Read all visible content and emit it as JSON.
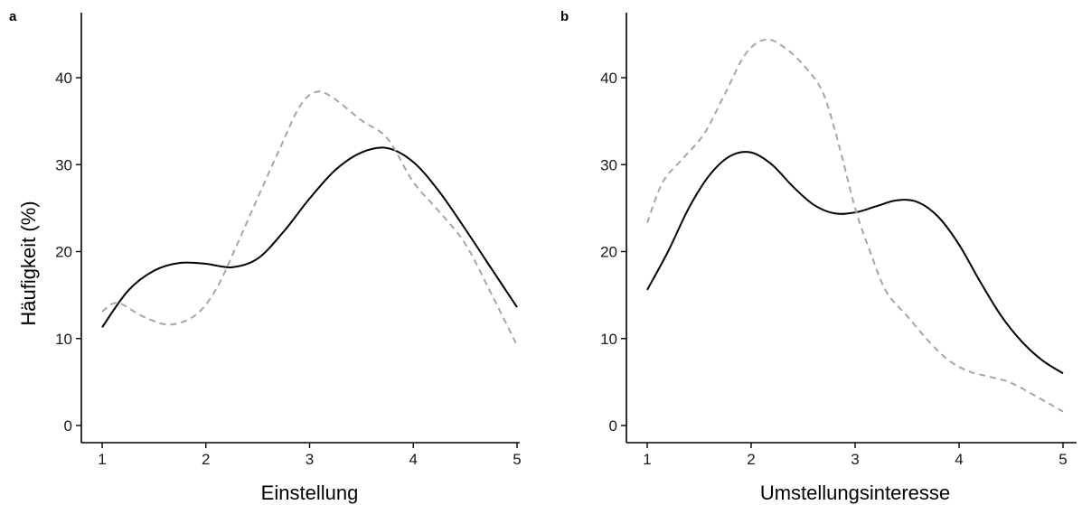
{
  "chart_data": [
    {
      "type": "line",
      "panel_label": "a",
      "xlabel": "Einstellung",
      "ylabel": "Häufigkeit (%)",
      "xlim": [
        1,
        5
      ],
      "ylim": [
        0,
        45
      ],
      "x_ticks": [
        1,
        2,
        3,
        4,
        5
      ],
      "y_ticks": [
        0,
        10,
        20,
        30,
        40
      ],
      "grid": false,
      "series": [
        {
          "style": "solid",
          "color": "#000000",
          "points": [
            [
              1.0,
              11.3
            ],
            [
              1.25,
              15.5
            ],
            [
              1.5,
              17.8
            ],
            [
              1.75,
              18.7
            ],
            [
              2.0,
              18.6
            ],
            [
              2.25,
              18.2
            ],
            [
              2.5,
              19.2
            ],
            [
              2.75,
              22.3
            ],
            [
              3.0,
              26.1
            ],
            [
              3.25,
              29.4
            ],
            [
              3.5,
              31.4
            ],
            [
              3.75,
              31.9
            ],
            [
              4.0,
              30.3
            ],
            [
              4.25,
              26.9
            ],
            [
              4.5,
              22.6
            ],
            [
              4.75,
              18.1
            ],
            [
              5.0,
              13.6
            ]
          ]
        },
        {
          "style": "dashed",
          "color": "#a6a6a6",
          "points": [
            [
              1.0,
              13.1
            ],
            [
              1.15,
              14.1
            ],
            [
              1.4,
              12.5
            ],
            [
              1.65,
              11.6
            ],
            [
              1.9,
              12.7
            ],
            [
              2.1,
              15.7
            ],
            [
              2.3,
              20.8
            ],
            [
              2.5,
              26.2
            ],
            [
              2.7,
              31.5
            ],
            [
              2.9,
              36.6
            ],
            [
              3.05,
              38.3
            ],
            [
              3.2,
              37.9
            ],
            [
              3.5,
              35.1
            ],
            [
              3.75,
              33.0
            ],
            [
              4.0,
              28.0
            ],
            [
              4.25,
              24.6
            ],
            [
              4.5,
              20.9
            ],
            [
              4.75,
              15.2
            ],
            [
              5.0,
              9.2
            ]
          ]
        }
      ]
    },
    {
      "type": "line",
      "panel_label": "b",
      "xlabel": "Umstellungsinteresse",
      "ylabel": "",
      "xlim": [
        1,
        5
      ],
      "ylim": [
        0,
        45
      ],
      "x_ticks": [
        1,
        2,
        3,
        4,
        5
      ],
      "y_ticks": [
        0,
        10,
        20,
        30,
        40
      ],
      "grid": false,
      "series": [
        {
          "style": "solid",
          "color": "#000000",
          "points": [
            [
              1.0,
              15.6
            ],
            [
              1.2,
              20.0
            ],
            [
              1.4,
              25.0
            ],
            [
              1.6,
              28.8
            ],
            [
              1.8,
              31.0
            ],
            [
              2.0,
              31.4
            ],
            [
              2.2,
              30.0
            ],
            [
              2.4,
              27.5
            ],
            [
              2.6,
              25.4
            ],
            [
              2.8,
              24.4
            ],
            [
              3.0,
              24.5
            ],
            [
              3.2,
              25.2
            ],
            [
              3.4,
              25.9
            ],
            [
              3.6,
              25.7
            ],
            [
              3.8,
              24.0
            ],
            [
              4.0,
              20.8
            ],
            [
              4.2,
              16.6
            ],
            [
              4.4,
              12.7
            ],
            [
              4.6,
              9.7
            ],
            [
              4.8,
              7.5
            ],
            [
              5.0,
              6.0
            ]
          ]
        },
        {
          "style": "dashed",
          "color": "#a6a6a6",
          "points": [
            [
              1.0,
              23.3
            ],
            [
              1.15,
              28.0
            ],
            [
              1.35,
              30.8
            ],
            [
              1.55,
              33.6
            ],
            [
              1.75,
              38.2
            ],
            [
              1.95,
              42.8
            ],
            [
              2.15,
              44.4
            ],
            [
              2.35,
              43.2
            ],
            [
              2.55,
              40.8
            ],
            [
              2.7,
              38.0
            ],
            [
              2.85,
              32.0
            ],
            [
              3.0,
              25.0
            ],
            [
              3.15,
              19.8
            ],
            [
              3.3,
              15.4
            ],
            [
              3.5,
              12.6
            ],
            [
              3.7,
              9.8
            ],
            [
              3.9,
              7.5
            ],
            [
              4.1,
              6.2
            ],
            [
              4.3,
              5.6
            ],
            [
              4.5,
              4.9
            ],
            [
              4.75,
              3.3
            ],
            [
              5.0,
              1.6
            ]
          ]
        }
      ]
    }
  ]
}
